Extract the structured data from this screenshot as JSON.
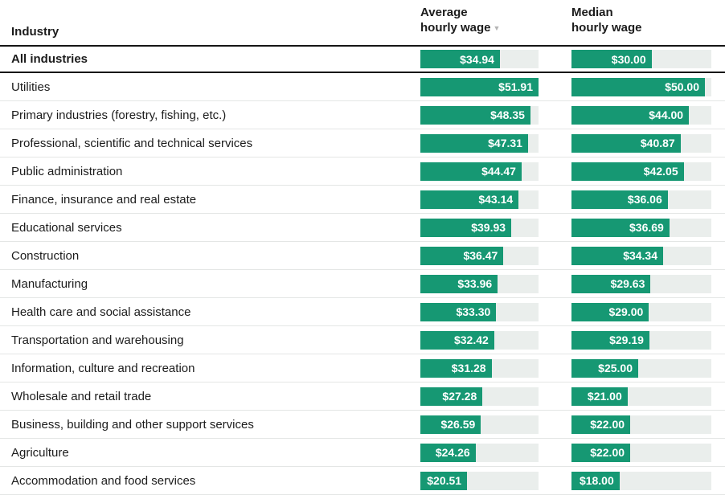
{
  "header": {
    "industry_label": "Industry",
    "average_column": {
      "line1": "Average",
      "line2": "hourly wage",
      "sort_icon": "▼"
    },
    "median_column": {
      "line1": "Median",
      "line2": "hourly wage"
    }
  },
  "chart_data": {
    "type": "bar",
    "orientation": "horizontal",
    "title": "",
    "value_prefix": "$",
    "sorted_by": "Average hourly wage, descending",
    "emphasized_row": "All industries",
    "bar_color": "#169873",
    "track_color": "#eaeeec",
    "categories": [
      "All industries",
      "Utilities",
      "Primary industries (forestry, fishing, etc.)",
      "Professional, scientific and technical services",
      "Public administration",
      "Finance, insurance and real estate",
      "Educational services",
      "Construction",
      "Manufacturing",
      "Health care and social assistance",
      "Transportation and warehousing",
      "Information, culture and recreation",
      "Wholesale and retail trade",
      "Business, building and other support services",
      "Agriculture",
      "Accommodation and food services"
    ],
    "series": [
      {
        "name": "Average hourly wage",
        "axis_max": 51.91,
        "values": [
          34.94,
          51.91,
          48.35,
          47.31,
          44.47,
          43.14,
          39.93,
          36.47,
          33.96,
          33.3,
          32.42,
          31.28,
          27.28,
          26.59,
          24.26,
          20.51
        ]
      },
      {
        "name": "Median hourly wage",
        "axis_max": 52.4,
        "values": [
          30.0,
          50.0,
          44.0,
          40.87,
          42.05,
          36.06,
          36.69,
          34.34,
          29.63,
          29.0,
          29.19,
          25.0,
          21.0,
          22.0,
          22.0,
          18.0
        ]
      }
    ]
  }
}
